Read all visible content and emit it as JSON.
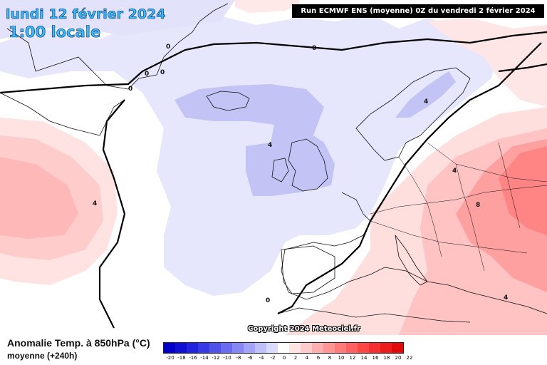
{
  "header": {
    "date": "lundi 12 février 2024",
    "time": "1:00 locale",
    "run_info": "Run ECMWF ENS (moyenne) 0Z du vendredi 2 février 2024"
  },
  "copyright": "Copyright 2024 Meteociel.fr",
  "legend": {
    "title": "Anomalie Temp. à 850hPa (°C)",
    "subtitle": "moyenne (+240h)",
    "scale": [
      {
        "label": "-20",
        "color": "#0000c8"
      },
      {
        "label": "-18",
        "color": "#1010d2"
      },
      {
        "label": "-16",
        "color": "#2323dc"
      },
      {
        "label": "-14",
        "color": "#3a3ae4"
      },
      {
        "label": "-12",
        "color": "#5252ea"
      },
      {
        "label": "-10",
        "color": "#6b6bf0"
      },
      {
        "label": "-8",
        "color": "#8787f4"
      },
      {
        "label": "-6",
        "color": "#a3a3f7"
      },
      {
        "label": "-4",
        "color": "#bfbffa"
      },
      {
        "label": "-2",
        "color": "#dadafc"
      },
      {
        "label": "0",
        "color": "#ffffff"
      },
      {
        "label": "2",
        "color": "#ffe4e4"
      },
      {
        "label": "4",
        "color": "#ffcaca"
      },
      {
        "label": "6",
        "color": "#ffafaf"
      },
      {
        "label": "8",
        "color": "#ff9595"
      },
      {
        "label": "10",
        "color": "#ff7a7a"
      },
      {
        "label": "12",
        "color": "#ff6060"
      },
      {
        "label": "14",
        "color": "#ff4646"
      },
      {
        "label": "16",
        "color": "#f63030"
      },
      {
        "label": "18",
        "color": "#ec1c1c"
      },
      {
        "label": "20",
        "color": "#e00a0a"
      },
      {
        "label": "22",
        "color": ""
      }
    ]
  },
  "contour_labels": {
    "greenland_1": "0",
    "greenland_2": "0",
    "greenland_3": "0",
    "greenland_4": "0",
    "arctic": "0",
    "scotland": "4",
    "scandinavia": "4",
    "west_atlantic": "4",
    "east_europe_1": "4",
    "east_europe_2": "8",
    "south_atlantic": "0",
    "mediterranean": "4"
  }
}
